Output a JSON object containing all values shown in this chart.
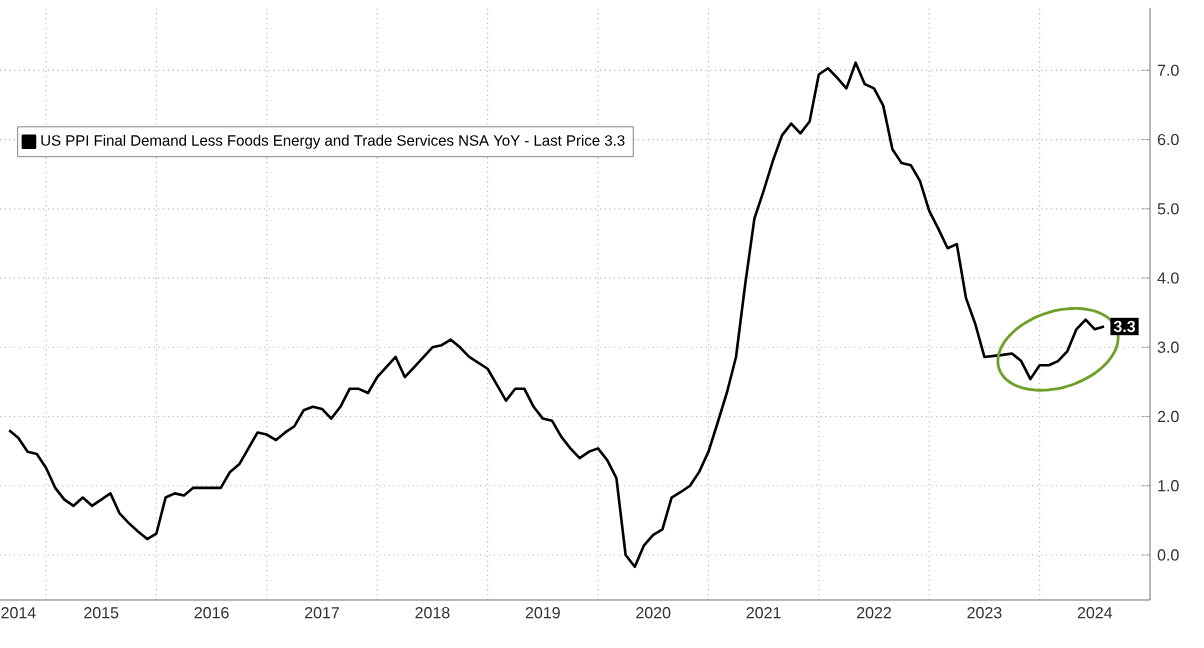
{
  "chart_data": {
    "type": "line",
    "x": [
      "2014-09",
      "2014-10",
      "2014-11",
      "2014-12",
      "2015-01",
      "2015-02",
      "2015-03",
      "2015-04",
      "2015-05",
      "2015-06",
      "2015-07",
      "2015-08",
      "2015-09",
      "2015-10",
      "2015-11",
      "2015-12",
      "2016-01",
      "2016-02",
      "2016-03",
      "2016-04",
      "2016-05",
      "2016-06",
      "2016-08",
      "2016-09",
      "2016-10",
      "2016-11",
      "2016-12",
      "2017-01",
      "2017-02",
      "2017-03",
      "2017-04",
      "2017-05",
      "2017-06",
      "2017-07",
      "2017-08",
      "2017-09",
      "2017-10",
      "2017-11",
      "2017-12",
      "2018-01",
      "2018-03",
      "2018-04",
      "2018-05",
      "2018-07",
      "2018-08",
      "2018-09",
      "2018-10",
      "2018-11",
      "2019-01",
      "2019-02",
      "2019-03",
      "2019-04",
      "2019-05",
      "2019-06",
      "2019-07",
      "2019-08",
      "2019-09",
      "2019-10",
      "2019-11",
      "2019-12",
      "2020-01",
      "2020-02",
      "2020-03",
      "2020-04",
      "2020-05",
      "2020-06",
      "2020-07",
      "2020-08",
      "2020-09",
      "2020-10",
      "2020-11",
      "2020-12",
      "2021-01",
      "2021-02",
      "2021-03",
      "2021-04",
      "2021-05",
      "2021-06",
      "2021-07",
      "2021-08",
      "2021-09",
      "2021-10",
      "2021-11",
      "2021-12",
      "2022-01",
      "2022-02",
      "2022-03",
      "2022-04",
      "2022-05",
      "2022-06",
      "2022-07",
      "2022-08",
      "2022-09",
      "2022-10",
      "2022-11",
      "2022-12",
      "2023-01",
      "2023-02",
      "2023-03",
      "2023-04",
      "2023-05",
      "2023-06",
      "2023-07",
      "2023-09",
      "2023-10",
      "2023-11",
      "2023-12",
      "2024-01",
      "2024-02",
      "2024-03",
      "2024-04",
      "2024-05",
      "2024-06",
      "2024-07",
      "2024-08"
    ],
    "series": [
      {
        "name": "US PPI Final Demand Less Foods Energy and Trade Services NSA YoY - Last Price 3.3",
        "color": "#000000",
        "values": [
          1.8,
          1.69,
          1.49,
          1.46,
          1.26,
          0.97,
          0.8,
          0.71,
          0.83,
          0.71,
          0.8,
          0.89,
          0.6,
          0.46,
          0.34,
          0.23,
          0.31,
          0.83,
          0.89,
          0.86,
          0.97,
          0.97,
          0.97,
          1.2,
          1.31,
          1.54,
          1.77,
          1.74,
          1.66,
          1.77,
          1.86,
          2.09,
          2.14,
          2.11,
          1.97,
          2.14,
          2.4,
          2.4,
          2.34,
          2.57,
          2.86,
          2.57,
          2.71,
          3.0,
          3.03,
          3.11,
          3.0,
          2.86,
          2.69,
          2.46,
          2.23,
          2.4,
          2.4,
          2.14,
          1.97,
          1.94,
          1.71,
          1.54,
          1.4,
          1.49,
          1.54,
          1.37,
          1.11,
          0.0,
          -0.17,
          0.14,
          0.29,
          0.37,
          0.83,
          0.91,
          1.0,
          1.2,
          1.49,
          1.91,
          2.34,
          2.86,
          3.91,
          4.86,
          5.26,
          5.69,
          6.06,
          6.23,
          6.09,
          6.26,
          6.94,
          7.03,
          6.89,
          6.74,
          7.11,
          6.8,
          6.74,
          6.49,
          5.86,
          5.66,
          5.63,
          5.4,
          4.97,
          4.71,
          4.43,
          4.49,
          3.71,
          3.34,
          2.86,
          2.89,
          2.91,
          2.8,
          2.54,
          2.74,
          2.74,
          2.8,
          2.94,
          3.26,
          3.4,
          3.26,
          3.3
        ]
      }
    ],
    "xlim": [
      "2014-08",
      "2025-01"
    ],
    "xticks": [
      {
        "value": "2014-10",
        "label": "2014"
      },
      {
        "value": "2015-07",
        "label": "2015"
      },
      {
        "value": "2016-07",
        "label": "2016"
      },
      {
        "value": "2017-07",
        "label": "2017"
      },
      {
        "value": "2018-07",
        "label": "2018"
      },
      {
        "value": "2019-07",
        "label": "2019"
      },
      {
        "value": "2020-07",
        "label": "2020"
      },
      {
        "value": "2021-07",
        "label": "2021"
      },
      {
        "value": "2022-07",
        "label": "2022"
      },
      {
        "value": "2023-07",
        "label": "2023"
      },
      {
        "value": "2024-07",
        "label": "2024"
      },
      {
        "value": "2015-01",
        "label": null
      },
      {
        "value": "2016-01",
        "label": null
      },
      {
        "value": "2017-01",
        "label": null
      },
      {
        "value": "2018-01",
        "label": null
      },
      {
        "value": "2019-01",
        "label": null
      },
      {
        "value": "2020-01",
        "label": null
      },
      {
        "value": "2021-01",
        "label": null
      },
      {
        "value": "2022-01",
        "label": null
      },
      {
        "value": "2023-01",
        "label": null
      },
      {
        "value": "2024-01",
        "label": null
      }
    ],
    "ylim": [
      -0.65,
      7.9
    ],
    "yticks": [
      {
        "value": 0,
        "label": "0.0"
      },
      {
        "value": 1,
        "label": "1.0"
      },
      {
        "value": 2,
        "label": "2.0"
      },
      {
        "value": 3,
        "label": "3.0"
      },
      {
        "value": 4,
        "label": "4.0"
      },
      {
        "value": 5,
        "label": "5.0"
      },
      {
        "value": 6,
        "label": "6.0"
      },
      {
        "value": 7,
        "label": "7.0"
      }
    ],
    "annotations": [
      {
        "text": "3.3",
        "x": "2024-08",
        "y": 3.3
      }
    ],
    "grid": true,
    "legend": "top left"
  }
}
